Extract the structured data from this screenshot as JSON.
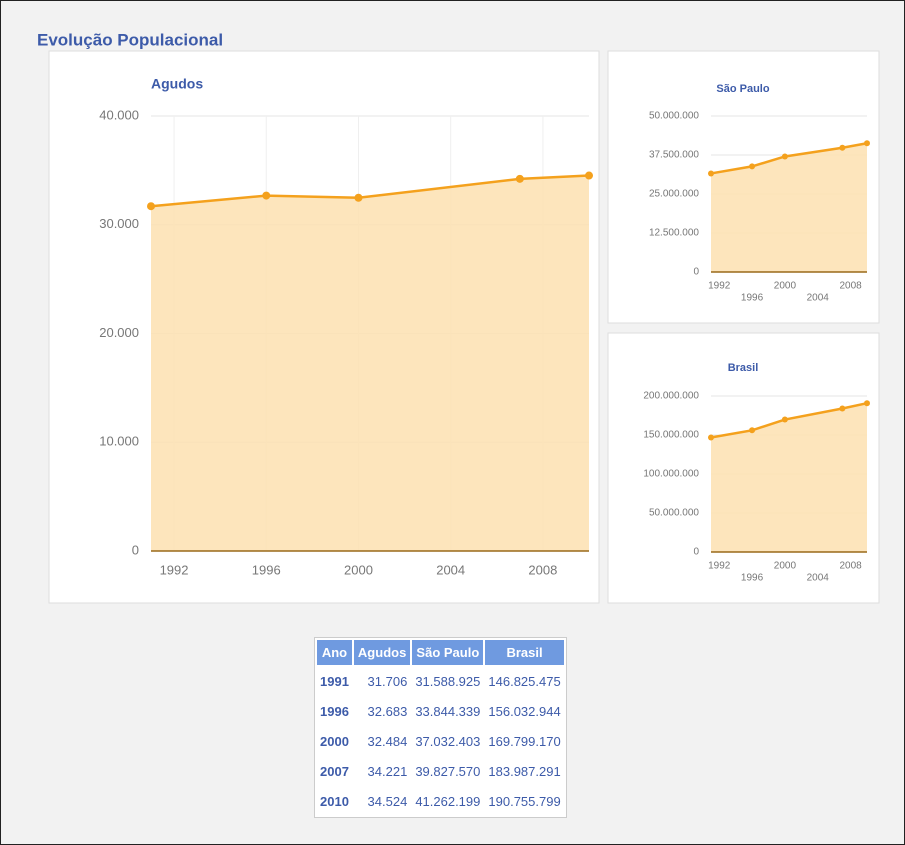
{
  "title": "Evolução Populacional",
  "chart_data": [
    {
      "type": "area",
      "title": "Agudos",
      "x": [
        1991,
        1996,
        2000,
        2007,
        2010
      ],
      "values": [
        31706,
        32683,
        32484,
        34221,
        34524
      ],
      "color": "#f4a11d",
      "fill": "#fde0b0",
      "xlim": [
        1991,
        2010
      ],
      "xticks": [
        1992,
        1996,
        2000,
        2004,
        2008
      ],
      "ylim": [
        0,
        40000
      ],
      "yticks": [
        0,
        {
          "value": 10000,
          "label": "10.000"
        },
        {
          "value": 20000,
          "label": "20.000"
        },
        {
          "value": 30000,
          "label": "30.000"
        },
        {
          "value": 40000,
          "label": "40.000"
        }
      ],
      "grid": true
    },
    {
      "type": "area",
      "title": "São Paulo",
      "x": [
        1991,
        1996,
        2000,
        2007,
        2010
      ],
      "values": [
        31588925,
        33844339,
        37032403,
        39827570,
        41262199
      ],
      "color": "#f4a11d",
      "fill": "#fde0b0",
      "xlim": [
        1991,
        2010
      ],
      "xticks": [
        1992,
        1996,
        2000,
        2004,
        2008
      ],
      "ylim": [
        0,
        50000000
      ],
      "yticks": [
        0,
        {
          "value": 12500000,
          "label": "12.500.000"
        },
        {
          "value": 25000000,
          "label": "25.000.000"
        },
        {
          "value": 37500000,
          "label": "37.500.000"
        },
        {
          "value": 50000000,
          "label": "50.000.000"
        }
      ],
      "grid": true
    },
    {
      "type": "area",
      "title": "Brasil",
      "x": [
        1991,
        1996,
        2000,
        2007,
        2010
      ],
      "values": [
        146825475,
        156032944,
        169799170,
        183987291,
        190755799
      ],
      "color": "#f4a11d",
      "fill": "#fde0b0",
      "xlim": [
        1991,
        2010
      ],
      "xticks": [
        1992,
        1996,
        2000,
        2004,
        2008
      ],
      "ylim": [
        0,
        200000000
      ],
      "yticks": [
        0,
        {
          "value": 50000000,
          "label": "50.000.000"
        },
        {
          "value": 100000000,
          "label": "100.000.000"
        },
        {
          "value": 150000000,
          "label": "150.000.000"
        },
        {
          "value": 200000000,
          "label": "200.000.000"
        }
      ],
      "grid": true
    }
  ],
  "table": {
    "header": [
      "Ano",
      "Agudos",
      "São Paulo",
      "Brasil"
    ],
    "rows": [
      [
        "1991",
        "31.706",
        "31.588.925",
        "146.825.475"
      ],
      [
        "1996",
        "32.683",
        "33.844.339",
        "156.032.944"
      ],
      [
        "2000",
        "32.484",
        "37.032.403",
        "169.799.170"
      ],
      [
        "2007",
        "34.221",
        "39.827.570",
        "183.987.291"
      ],
      [
        "2010",
        "34.524",
        "41.262.199",
        "190.755.799"
      ]
    ]
  }
}
